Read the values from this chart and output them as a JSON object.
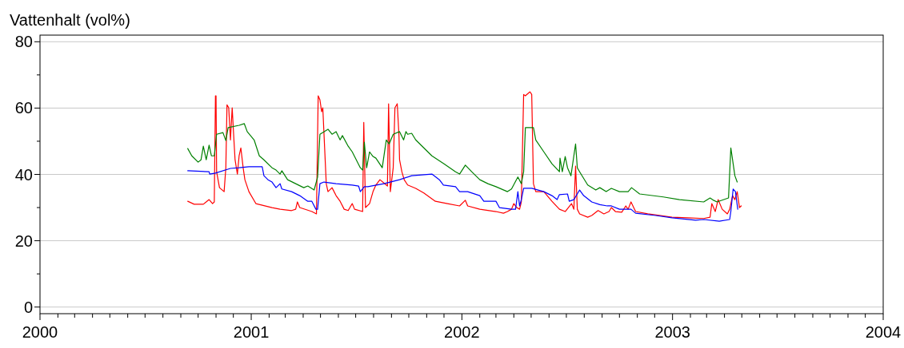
{
  "chart_data": {
    "type": "line",
    "ylabel": "Vattenhalt (vol%)",
    "xlim": [
      "2000-01-01",
      "2004-01-01"
    ],
    "xticks": [
      {
        "value": "2000-01-01",
        "label": "2000"
      },
      {
        "value": "2000-02-01",
        "label": null
      },
      {
        "value": "2000-03-01",
        "label": null
      },
      {
        "value": "2000-04-01",
        "label": null
      },
      {
        "value": "2000-05-01",
        "label": null
      },
      {
        "value": "2000-06-01",
        "label": null
      },
      {
        "value": "2000-07-01",
        "label": null
      },
      {
        "value": "2000-08-01",
        "label": null
      },
      {
        "value": "2000-09-01",
        "label": null
      },
      {
        "value": "2000-10-01",
        "label": null
      },
      {
        "value": "2000-11-01",
        "label": null
      },
      {
        "value": "2000-12-01",
        "label": null
      },
      {
        "value": "2001-01-01",
        "label": "2001"
      },
      {
        "value": "2001-02-01",
        "label": null
      },
      {
        "value": "2001-03-01",
        "label": null
      },
      {
        "value": "2001-04-01",
        "label": null
      },
      {
        "value": "2001-05-01",
        "label": null
      },
      {
        "value": "2001-06-01",
        "label": null
      },
      {
        "value": "2001-07-01",
        "label": null
      },
      {
        "value": "2001-08-01",
        "label": null
      },
      {
        "value": "2001-09-01",
        "label": null
      },
      {
        "value": "2001-10-01",
        "label": null
      },
      {
        "value": "2001-11-01",
        "label": null
      },
      {
        "value": "2001-12-01",
        "label": null
      },
      {
        "value": "2002-01-01",
        "label": "2002"
      },
      {
        "value": "2002-02-01",
        "label": null
      },
      {
        "value": "2002-03-01",
        "label": null
      },
      {
        "value": "2002-04-01",
        "label": null
      },
      {
        "value": "2002-05-01",
        "label": null
      },
      {
        "value": "2002-06-01",
        "label": null
      },
      {
        "value": "2002-07-01",
        "label": null
      },
      {
        "value": "2002-08-01",
        "label": null
      },
      {
        "value": "2002-09-01",
        "label": null
      },
      {
        "value": "2002-10-01",
        "label": null
      },
      {
        "value": "2002-11-01",
        "label": null
      },
      {
        "value": "2002-12-01",
        "label": null
      },
      {
        "value": "2003-01-01",
        "label": "2003"
      },
      {
        "value": "2003-02-01",
        "label": null
      },
      {
        "value": "2003-03-01",
        "label": null
      },
      {
        "value": "2003-04-01",
        "label": null
      },
      {
        "value": "2003-05-01",
        "label": null
      },
      {
        "value": "2003-06-01",
        "label": null
      },
      {
        "value": "2003-07-01",
        "label": null
      },
      {
        "value": "2003-08-01",
        "label": null
      },
      {
        "value": "2003-09-01",
        "label": null
      },
      {
        "value": "2003-10-01",
        "label": null
      },
      {
        "value": "2003-11-01",
        "label": null
      },
      {
        "value": "2003-12-01",
        "label": null
      },
      {
        "value": "2004-01-01",
        "label": "2004"
      }
    ],
    "ylim": [
      -2,
      82
    ],
    "yticks": [
      0,
      {
        "value": 10,
        "label": null
      },
      20,
      {
        "value": 30,
        "label": null
      },
      40,
      {
        "value": 50,
        "label": null
      },
      60,
      {
        "value": 70,
        "label": null
      },
      80
    ],
    "grid": "y",
    "marker": "none",
    "line_style": "solid",
    "series": [
      {
        "color": "#ff0000",
        "x": [
          "2000-09-13",
          "2000-09-24",
          "2000-10-10",
          "2000-10-20",
          "2000-10-26",
          "2000-10-29",
          "2000-10-31",
          "2000-11-01",
          "2000-11-02",
          "2000-11-07",
          "2000-11-15",
          "2000-11-18",
          "2000-11-20",
          "2000-11-23",
          "2000-11-26",
          "2000-11-29",
          "2000-12-02",
          "2000-12-04",
          "2000-12-08",
          "2000-12-11",
          "2000-12-14",
          "2000-12-18",
          "2000-12-21",
          "2000-12-28",
          "2001-01-09",
          "2001-02-06",
          "2001-02-20",
          "2001-03-12",
          "2001-03-19",
          "2001-03-22",
          "2001-03-26",
          "2001-04-16",
          "2001-04-24",
          "2001-04-27",
          "2001-04-30",
          "2001-05-03",
          "2001-05-05",
          "2001-05-11",
          "2001-05-14",
          "2001-05-21",
          "2001-05-28",
          "2001-06-04",
          "2001-06-11",
          "2001-06-18",
          "2001-06-25",
          "2001-06-29",
          "2001-07-13",
          "2001-07-15",
          "2001-07-18",
          "2001-07-25",
          "2001-07-31",
          "2001-08-05",
          "2001-08-12",
          "2001-08-25",
          "2001-08-27",
          "2001-08-30",
          "2001-09-04",
          "2001-09-07",
          "2001-09-11",
          "2001-09-14",
          "2001-09-15",
          "2001-09-19",
          "2001-09-23",
          "2001-09-29",
          "2001-10-13",
          "2001-10-27",
          "2001-11-16",
          "2001-12-07",
          "2001-12-28",
          "2002-01-07",
          "2002-01-11",
          "2002-02-01",
          "2002-03-01",
          "2002-03-14",
          "2002-03-21",
          "2002-03-28",
          "2002-04-01",
          "2002-04-06",
          "2002-04-11",
          "2002-04-14",
          "2002-04-18",
          "2002-04-21",
          "2002-04-29",
          "2002-05-02",
          "2002-05-05",
          "2002-05-09",
          "2002-05-23",
          "2002-06-06",
          "2002-06-19",
          "2002-06-29",
          "2002-07-10",
          "2002-07-14",
          "2002-07-17",
          "2002-07-20",
          "2002-07-24",
          "2002-08-07",
          "2002-08-14",
          "2002-08-25",
          "2002-09-04",
          "2002-09-13",
          "2002-09-17",
          "2002-09-24",
          "2002-10-05",
          "2002-10-12",
          "2002-10-16",
          "2002-10-21",
          "2002-10-29",
          "2002-11-19",
          "2002-12-31",
          "2003-01-27",
          "2003-02-24",
          "2003-03-07",
          "2003-03-10",
          "2003-03-16",
          "2003-03-21",
          "2003-03-28",
          "2003-04-06",
          "2003-04-10",
          "2003-04-15",
          "2003-04-19",
          "2003-04-23",
          "2003-04-27",
          "2003-04-30"
        ],
        "values": [
          31.9,
          31.0,
          31.0,
          32.4,
          31.2,
          31.7,
          63.7,
          63.7,
          40.8,
          36.0,
          34.8,
          42.0,
          61.0,
          60.1,
          50.4,
          60.1,
          50.4,
          44.4,
          40.1,
          45.6,
          48.0,
          42.0,
          38.4,
          34.8,
          31.2,
          30.0,
          29.5,
          29.1,
          29.5,
          31.7,
          30.0,
          28.8,
          28.1,
          63.7,
          62.5,
          58.9,
          60.1,
          37.2,
          34.8,
          36.0,
          33.6,
          31.9,
          29.5,
          29.1,
          31.2,
          29.5,
          28.8,
          55.7,
          30.0,
          31.2,
          34.8,
          36.8,
          38.4,
          36.5,
          61.3,
          34.8,
          42.0,
          60.1,
          61.3,
          51.7,
          44.4,
          40.8,
          38.4,
          36.8,
          35.8,
          34.4,
          31.9,
          31.2,
          30.5,
          32.2,
          30.5,
          29.5,
          28.8,
          28.3,
          28.8,
          29.5,
          31.2,
          30.0,
          29.5,
          31.7,
          64.1,
          63.7,
          64.9,
          64.1,
          37.2,
          34.8,
          34.8,
          31.9,
          29.5,
          28.8,
          31.2,
          29.5,
          42.5,
          29.5,
          28.1,
          27.1,
          27.6,
          29.1,
          28.1,
          28.8,
          30.0,
          28.8,
          28.6,
          30.5,
          29.5,
          31.7,
          28.8,
          28.1,
          27.1,
          26.9,
          26.7,
          27.1,
          31.2,
          28.8,
          32.4,
          29.5,
          28.1,
          29.5,
          33.6,
          32.4,
          34.8,
          30.0,
          30.5
        ]
      },
      {
        "color": "#0000ff",
        "x": [
          "2000-09-13",
          "2000-10-20",
          "2000-10-21",
          "2000-10-31",
          "2000-11-26",
          "2000-12-11",
          "2000-12-28",
          "2001-01-20",
          "2001-01-23",
          "2001-01-30",
          "2001-02-06",
          "2001-02-13",
          "2001-02-20",
          "2001-02-23",
          "2001-03-12",
          "2001-03-26",
          "2001-04-09",
          "2001-04-16",
          "2001-04-23",
          "2001-04-26",
          "2001-04-30",
          "2001-05-07",
          "2001-05-28",
          "2001-06-25",
          "2001-07-06",
          "2001-07-09",
          "2001-07-16",
          "2001-07-22",
          "2001-08-19",
          "2001-09-15",
          "2001-10-06",
          "2001-11-10",
          "2001-11-23",
          "2001-11-30",
          "2001-12-21",
          "2001-12-28",
          "2002-01-11",
          "2002-02-01",
          "2002-02-08",
          "2002-03-01",
          "2002-03-07",
          "2002-03-28",
          "2002-04-04",
          "2002-04-08",
          "2002-04-11",
          "2002-04-14",
          "2002-04-18",
          "2002-05-02",
          "2002-05-23",
          "2002-06-06",
          "2002-06-15",
          "2002-06-19",
          "2002-07-03",
          "2002-07-06",
          "2002-07-14",
          "2002-07-24",
          "2002-07-31",
          "2002-08-14",
          "2002-08-28",
          "2002-09-10",
          "2002-09-17",
          "2002-10-01",
          "2002-10-21",
          "2002-10-29",
          "2002-12-03",
          "2002-12-31",
          "2003-02-10",
          "2003-02-24",
          "2003-03-23",
          "2003-04-10",
          "2003-04-12",
          "2003-04-16",
          "2003-04-20",
          "2003-04-24"
        ],
        "values": [
          41.1,
          40.8,
          40.1,
          40.4,
          41.8,
          42.0,
          42.3,
          42.3,
          39.6,
          38.4,
          37.7,
          36.0,
          37.2,
          35.6,
          34.8,
          33.6,
          31.9,
          31.9,
          29.5,
          29.5,
          37.2,
          37.7,
          37.2,
          36.8,
          36.5,
          34.8,
          36.3,
          36.3,
          37.2,
          38.4,
          39.6,
          40.1,
          38.4,
          36.8,
          36.3,
          34.8,
          34.8,
          33.6,
          31.9,
          31.9,
          30.0,
          29.5,
          29.5,
          34.8,
          30.5,
          32.4,
          35.8,
          35.8,
          34.8,
          33.6,
          32.4,
          33.9,
          34.1,
          31.9,
          32.4,
          35.3,
          33.6,
          31.7,
          30.9,
          30.5,
          30.5,
          29.5,
          29.5,
          28.3,
          27.6,
          26.9,
          26.2,
          26.4,
          25.9,
          26.4,
          28.8,
          35.6,
          34.8,
          29.5
        ]
      },
      {
        "color": "#008000",
        "x": [
          "2000-09-13",
          "2000-09-20",
          "2000-10-01",
          "2000-10-06",
          "2000-10-10",
          "2000-10-15",
          "2000-10-20",
          "2000-10-24",
          "2000-10-29",
          "2000-11-02",
          "2000-11-13",
          "2000-11-18",
          "2000-11-22",
          "2000-12-11",
          "2000-12-20",
          "2000-12-25",
          "2001-01-06",
          "2001-01-15",
          "2001-01-23",
          "2001-02-06",
          "2001-02-13",
          "2001-02-20",
          "2001-02-23",
          "2001-03-05",
          "2001-03-19",
          "2001-04-02",
          "2001-04-09",
          "2001-04-20",
          "2001-04-26",
          "2001-04-30",
          "2001-05-14",
          "2001-05-21",
          "2001-05-28",
          "2001-06-04",
          "2001-06-08",
          "2001-06-18",
          "2001-06-25",
          "2001-07-02",
          "2001-07-09",
          "2001-07-13",
          "2001-07-16",
          "2001-07-20",
          "2001-07-25",
          "2001-07-31",
          "2001-08-05",
          "2001-08-16",
          "2001-08-23",
          "2001-08-28",
          "2001-09-04",
          "2001-09-15",
          "2001-09-22",
          "2001-09-26",
          "2001-09-29",
          "2001-10-06",
          "2001-10-13",
          "2001-10-27",
          "2001-11-10",
          "2001-12-01",
          "2001-12-21",
          "2001-12-28",
          "2002-01-07",
          "2002-01-18",
          "2002-02-01",
          "2002-02-15",
          "2002-03-01",
          "2002-03-21",
          "2002-03-28",
          "2002-04-08",
          "2002-04-14",
          "2002-04-18",
          "2002-04-21",
          "2002-05-05",
          "2002-05-09",
          "2002-05-23",
          "2002-06-06",
          "2002-06-19",
          "2002-06-20",
          "2002-06-24",
          "2002-06-29",
          "2002-07-03",
          "2002-07-09",
          "2002-07-17",
          "2002-07-20",
          "2002-07-24",
          "2002-08-07",
          "2002-08-21",
          "2002-08-28",
          "2002-09-08",
          "2002-09-17",
          "2002-10-01",
          "2002-10-16",
          "2002-10-22",
          "2002-11-05",
          "2002-12-16",
          "2003-01-13",
          "2003-02-24",
          "2003-03-07",
          "2003-03-13",
          "2003-03-19",
          "2003-04-08",
          "2003-04-12",
          "2003-04-16",
          "2003-04-19",
          "2003-04-23"
        ],
        "values": [
          47.8,
          45.6,
          43.7,
          44.4,
          48.5,
          44.4,
          48.8,
          45.6,
          45.6,
          52.1,
          52.6,
          50.2,
          54.1,
          54.8,
          55.3,
          52.9,
          50.4,
          45.6,
          44.4,
          42.0,
          41.3,
          40.1,
          41.1,
          38.4,
          37.2,
          36.0,
          36.5,
          35.3,
          39.2,
          52.1,
          53.6,
          52.1,
          52.9,
          50.4,
          51.7,
          48.5,
          46.8,
          44.4,
          42.0,
          41.3,
          49.7,
          42.0,
          46.8,
          45.4,
          44.9,
          42.0,
          50.4,
          49.2,
          52.1,
          52.9,
          50.4,
          52.9,
          52.1,
          52.4,
          50.4,
          48.0,
          45.6,
          43.2,
          40.8,
          40.1,
          42.8,
          40.8,
          38.4,
          37.2,
          36.3,
          34.8,
          35.6,
          39.2,
          37.2,
          40.8,
          54.1,
          54.1,
          50.4,
          46.8,
          43.2,
          40.8,
          44.9,
          40.8,
          45.4,
          42.0,
          39.6,
          49.2,
          42.0,
          40.8,
          36.8,
          35.3,
          36.0,
          34.8,
          35.8,
          34.8,
          34.8,
          36.0,
          34.1,
          33.2,
          32.4,
          31.7,
          32.9,
          32.2,
          31.7,
          32.9,
          48.0,
          43.2,
          39.6,
          37.7
        ]
      }
    ]
  }
}
